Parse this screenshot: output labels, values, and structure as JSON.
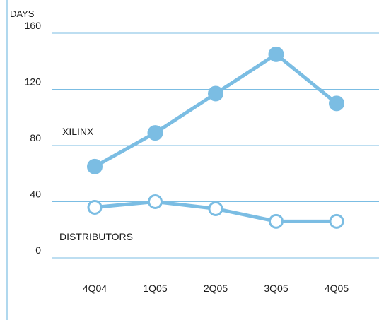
{
  "chart_data": {
    "type": "line",
    "title": "",
    "xlabel": "",
    "ylabel": "DAYS",
    "categories": [
      "4Q04",
      "1Q05",
      "2Q05",
      "3Q05",
      "4Q05"
    ],
    "ylim": [
      0,
      160
    ],
    "yticks": [
      0,
      40,
      80,
      120,
      160
    ],
    "grid": true,
    "legend": "inline labels",
    "series": [
      {
        "name": "XILINX",
        "values": [
          65,
          89,
          117,
          145,
          110
        ],
        "marker": "filled"
      },
      {
        "name": "DISTRIBUTORS",
        "values": [
          36,
          40,
          35,
          26,
          26
        ],
        "marker": "hollow"
      }
    ],
    "colors": {
      "line": "#7bbde3",
      "grid": "#7bbde3",
      "axis": "#7bbde3",
      "text": "#1a1a1a"
    }
  }
}
